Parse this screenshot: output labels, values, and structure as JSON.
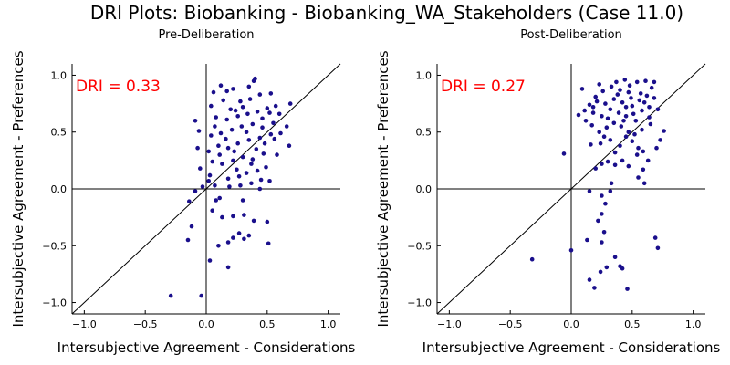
{
  "figure": {
    "title": "DRI Plots: Biobanking - Biobanking_WA_Stakeholders (Case 11.0)"
  },
  "colors": {
    "point": "#1a0f8c",
    "dri_text": "#ff0000",
    "axis": "#000000"
  },
  "chart_data": [
    {
      "type": "scatter",
      "title": "Pre-Deliberation",
      "xlabel": "Intersubjective Agreement - Considerations",
      "ylabel": "Intersubjective Agreement - Preferences",
      "xlim": [
        -1.1,
        1.1
      ],
      "ylim": [
        -1.1,
        1.1
      ],
      "xticks": [
        "−1.0",
        "−0.5",
        "0.0",
        "0.5",
        "1.0"
      ],
      "xtick_values": [
        -1.0,
        -0.5,
        0.0,
        0.5,
        1.0
      ],
      "yticks": [
        "−1.0",
        "−0.5",
        "0.0",
        "0.5",
        "1.0"
      ],
      "ytick_values": [
        -1.0,
        -0.5,
        0.0,
        0.5,
        1.0
      ],
      "grid": false,
      "reference_lines": [
        "y = x",
        "x = 0",
        "y = 0"
      ],
      "annotation": "DRI = 0.33",
      "points": [
        [
          -0.29,
          -0.94
        ],
        [
          -0.04,
          -0.94
        ],
        [
          0.03,
          -0.63
        ],
        [
          0.18,
          -0.69
        ],
        [
          -0.15,
          -0.45
        ],
        [
          -0.12,
          -0.33
        ],
        [
          0.1,
          -0.5
        ],
        [
          0.18,
          -0.47
        ],
        [
          0.22,
          -0.43
        ],
        [
          0.27,
          -0.39
        ],
        [
          0.31,
          -0.44
        ],
        [
          0.35,
          -0.41
        ],
        [
          0.51,
          -0.48
        ],
        [
          0.05,
          -0.19
        ],
        [
          0.13,
          -0.25
        ],
        [
          0.22,
          -0.24
        ],
        [
          0.31,
          -0.23
        ],
        [
          0.39,
          -0.28
        ],
        [
          0.5,
          -0.29
        ],
        [
          0.08,
          -0.1
        ],
        [
          -0.14,
          -0.11
        ],
        [
          -0.09,
          -0.02
        ],
        [
          -0.03,
          0.02
        ],
        [
          0.02,
          0.07
        ],
        [
          0.07,
          0.03
        ],
        [
          0.11,
          -0.08
        ],
        [
          0.19,
          0.02
        ],
        [
          0.28,
          0.03
        ],
        [
          0.37,
          0.05
        ],
        [
          0.45,
          0.08
        ],
        [
          0.52,
          0.07
        ],
        [
          0.18,
          0.09
        ],
        [
          0.27,
          0.11
        ],
        [
          0.33,
          0.14
        ],
        [
          0.42,
          0.16
        ],
        [
          0.49,
          0.19
        ],
        [
          -0.05,
          0.18
        ],
        [
          0.05,
          0.24
        ],
        [
          0.13,
          0.22
        ],
        [
          0.22,
          0.25
        ],
        [
          0.3,
          0.28
        ],
        [
          0.38,
          0.26
        ],
        [
          0.47,
          0.31
        ],
        [
          0.58,
          0.3
        ],
        [
          0.68,
          0.38
        ],
        [
          -0.07,
          0.36
        ],
        [
          0.02,
          0.33
        ],
        [
          0.1,
          0.38
        ],
        [
          0.18,
          0.36
        ],
        [
          0.26,
          0.4
        ],
        [
          0.35,
          0.43
        ],
        [
          0.44,
          0.45
        ],
        [
          0.53,
          0.48
        ],
        [
          0.61,
          0.49
        ],
        [
          -0.06,
          0.51
        ],
        [
          0.04,
          0.47
        ],
        [
          0.12,
          0.49
        ],
        [
          0.21,
          0.52
        ],
        [
          0.29,
          0.55
        ],
        [
          0.38,
          0.57
        ],
        [
          0.46,
          0.54
        ],
        [
          0.55,
          0.58
        ],
        [
          -0.09,
          0.6
        ],
        [
          0.08,
          0.63
        ],
        [
          0.17,
          0.61
        ],
        [
          0.26,
          0.64
        ],
        [
          0.34,
          0.66
        ],
        [
          0.42,
          0.68
        ],
        [
          0.5,
          0.71
        ],
        [
          0.57,
          0.73
        ],
        [
          0.69,
          0.75
        ],
        [
          0.04,
          0.73
        ],
        [
          0.14,
          0.78
        ],
        [
          0.28,
          0.77
        ],
        [
          0.36,
          0.79
        ],
        [
          0.44,
          0.83
        ],
        [
          0.53,
          0.84
        ],
        [
          0.06,
          0.85
        ],
        [
          0.12,
          0.91
        ],
        [
          0.17,
          0.86
        ],
        [
          0.39,
          0.95
        ],
        [
          0.4,
          0.97
        ],
        [
          0.3,
          0.72
        ],
        [
          0.24,
          0.69
        ],
        [
          0.46,
          0.62
        ],
        [
          0.33,
          0.5
        ],
        [
          0.41,
          0.35
        ],
        [
          0.48,
          0.4
        ],
        [
          0.23,
          0.33
        ],
        [
          0.16,
          0.44
        ],
        [
          0.07,
          0.55
        ],
        [
          0.52,
          0.67
        ],
        [
          0.2,
          0.7
        ],
        [
          0.37,
          0.22
        ],
        [
          0.56,
          0.44
        ],
        [
          0.11,
          0.3
        ],
        [
          0.03,
          0.12
        ],
        [
          0.25,
          0.17
        ],
        [
          0.44,
          0.0
        ],
        [
          0.3,
          -0.1
        ],
        [
          0.6,
          0.66
        ],
        [
          0.66,
          0.55
        ],
        [
          0.35,
          0.9
        ],
        [
          0.22,
          0.88
        ]
      ]
    },
    {
      "type": "scatter",
      "title": "Post-Deliberation",
      "xlabel": "Intersubjective Agreement - Considerations",
      "ylabel": "Intersubjective Agreement - Preferences",
      "xlim": [
        -1.1,
        1.1
      ],
      "ylim": [
        -1.1,
        1.1
      ],
      "xticks": [
        "−1.0",
        "−0.5",
        "0.0",
        "0.5",
        "1.0"
      ],
      "xtick_values": [
        -1.0,
        -0.5,
        0.0,
        0.5,
        1.0
      ],
      "yticks": [
        "−1.0",
        "−0.5",
        "0.0",
        "0.5",
        "1.0"
      ],
      "ytick_values": [
        -1.0,
        -0.5,
        0.0,
        0.5,
        1.0
      ],
      "grid": false,
      "reference_lines": [
        "y = x",
        "x = 0",
        "y = 0"
      ],
      "annotation": "DRI = 0.27",
      "points": [
        [
          -0.32,
          -0.62
        ],
        [
          0.0,
          -0.54
        ],
        [
          0.13,
          -0.45
        ],
        [
          0.15,
          -0.8
        ],
        [
          0.19,
          -0.87
        ],
        [
          0.24,
          -0.73
        ],
        [
          0.29,
          -0.69
        ],
        [
          0.36,
          -0.6
        ],
        [
          0.4,
          -0.68
        ],
        [
          0.42,
          -0.7
        ],
        [
          0.46,
          -0.88
        ],
        [
          0.69,
          -0.43
        ],
        [
          0.71,
          -0.52
        ],
        [
          0.25,
          -0.47
        ],
        [
          0.27,
          -0.38
        ],
        [
          0.22,
          -0.28
        ],
        [
          0.25,
          -0.22
        ],
        [
          0.28,
          -0.13
        ],
        [
          0.25,
          -0.06
        ],
        [
          0.15,
          -0.02
        ],
        [
          0.32,
          -0.02
        ],
        [
          -0.06,
          0.31
        ],
        [
          0.2,
          0.18
        ],
        [
          0.25,
          0.22
        ],
        [
          0.3,
          0.24
        ],
        [
          0.36,
          0.21
        ],
        [
          0.42,
          0.25
        ],
        [
          0.47,
          0.2
        ],
        [
          0.54,
          0.3
        ],
        [
          0.59,
          0.33
        ],
        [
          0.63,
          0.25
        ],
        [
          0.59,
          0.17
        ],
        [
          0.55,
          0.1
        ],
        [
          0.6,
          0.05
        ],
        [
          0.7,
          0.36
        ],
        [
          0.73,
          0.43
        ],
        [
          0.76,
          0.51
        ],
        [
          0.16,
          0.39
        ],
        [
          0.24,
          0.4
        ],
        [
          0.32,
          0.43
        ],
        [
          0.4,
          0.38
        ],
        [
          0.45,
          0.46
        ],
        [
          0.5,
          0.42
        ],
        [
          0.55,
          0.36
        ],
        [
          0.17,
          0.56
        ],
        [
          0.23,
          0.5
        ],
        [
          0.29,
          0.54
        ],
        [
          0.35,
          0.58
        ],
        [
          0.41,
          0.55
        ],
        [
          0.47,
          0.5
        ],
        [
          0.53,
          0.6
        ],
        [
          0.58,
          0.52
        ],
        [
          0.65,
          0.57
        ],
        [
          0.06,
          0.65
        ],
        [
          0.11,
          0.69
        ],
        [
          0.18,
          0.67
        ],
        [
          0.25,
          0.64
        ],
        [
          0.32,
          0.7
        ],
        [
          0.39,
          0.67
        ],
        [
          0.45,
          0.72
        ],
        [
          0.51,
          0.66
        ],
        [
          0.58,
          0.69
        ],
        [
          0.64,
          0.72
        ],
        [
          0.71,
          0.7
        ],
        [
          0.15,
          0.74
        ],
        [
          0.21,
          0.77
        ],
        [
          0.28,
          0.75
        ],
        [
          0.35,
          0.79
        ],
        [
          0.42,
          0.76
        ],
        [
          0.49,
          0.8
        ],
        [
          0.56,
          0.78
        ],
        [
          0.62,
          0.82
        ],
        [
          0.68,
          0.8
        ],
        [
          0.09,
          0.88
        ],
        [
          0.26,
          0.86
        ],
        [
          0.33,
          0.9
        ],
        [
          0.4,
          0.87
        ],
        [
          0.48,
          0.91
        ],
        [
          0.54,
          0.94
        ],
        [
          0.61,
          0.95
        ],
        [
          0.66,
          0.89
        ],
        [
          0.68,
          0.94
        ],
        [
          0.37,
          0.94
        ],
        [
          0.44,
          0.96
        ],
        [
          0.2,
          0.81
        ],
        [
          0.3,
          0.62
        ],
        [
          0.43,
          0.6
        ],
        [
          0.52,
          0.48
        ],
        [
          0.36,
          0.32
        ],
        [
          0.27,
          0.46
        ],
        [
          0.57,
          0.84
        ],
        [
          0.64,
          0.63
        ],
        [
          0.47,
          0.85
        ],
        [
          0.12,
          0.6
        ],
        [
          0.33,
          0.05
        ],
        [
          0.5,
          0.73
        ],
        [
          0.38,
          0.83
        ],
        [
          0.23,
          0.92
        ],
        [
          0.6,
          0.76
        ],
        [
          0.45,
          0.64
        ],
        [
          0.18,
          0.72
        ]
      ]
    }
  ]
}
